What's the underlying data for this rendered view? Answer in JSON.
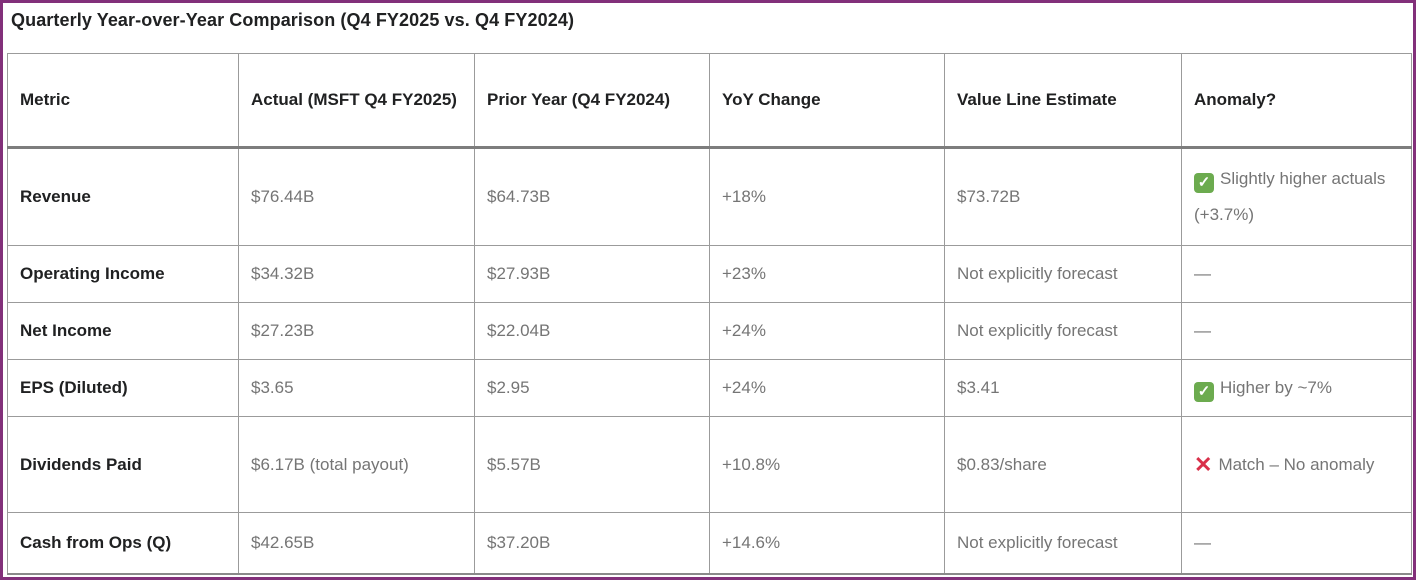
{
  "title": "Quarterly Year-over-Year Comparison (Q4 FY2025 vs. Q4 FY2024)",
  "colors": {
    "frame_purple": "#82307A",
    "check_green": "#6CAB4F",
    "cross_red": "#D9304A",
    "data_gray": "#757575",
    "heading_dark": "#202122"
  },
  "icons": {
    "check_glyph": "✓",
    "cross_glyph": "✕"
  },
  "table": {
    "headers": [
      "Metric",
      "Actual (MSFT Q4 FY2025)",
      "Prior Year (Q4 FY2024)",
      "YoY Change",
      "Value Line Estimate",
      "Anomaly?"
    ],
    "rows": [
      {
        "metric": "Revenue",
        "actual": "$76.44B",
        "prior": "$64.73B",
        "yoy": "+18%",
        "estimate": "$73.72B",
        "anomaly": {
          "icon": "check-icon",
          "text": "Slightly higher actuals (+3.7%)"
        }
      },
      {
        "metric": "Operating Income",
        "actual": "$34.32B",
        "prior": "$27.93B",
        "yoy": "+23%",
        "estimate": "Not explicitly forecast",
        "anomaly": {
          "icon": "none",
          "text": "—"
        }
      },
      {
        "metric": "Net Income",
        "actual": "$27.23B",
        "prior": "$22.04B",
        "yoy": "+24%",
        "estimate": "Not explicitly forecast",
        "anomaly": {
          "icon": "none",
          "text": "—"
        }
      },
      {
        "metric": "EPS (Diluted)",
        "actual": "$3.65",
        "prior": "$2.95",
        "yoy": "+24%",
        "estimate": "$3.41",
        "anomaly": {
          "icon": "check-icon",
          "text": "Higher by ~7%"
        }
      },
      {
        "metric": "Dividends Paid",
        "actual": "$6.17B (total payout)",
        "prior": "$5.57B",
        "yoy": "+10.8%",
        "estimate": "$0.83/share",
        "anomaly": {
          "icon": "cross-icon",
          "text": "Match – No anomaly"
        }
      },
      {
        "metric": "Cash from Ops (Q)",
        "actual": "$42.65B",
        "prior": "$37.20B",
        "yoy": "+14.6%",
        "estimate": "Not explicitly forecast",
        "anomaly": {
          "icon": "none",
          "text": "—"
        }
      }
    ]
  }
}
